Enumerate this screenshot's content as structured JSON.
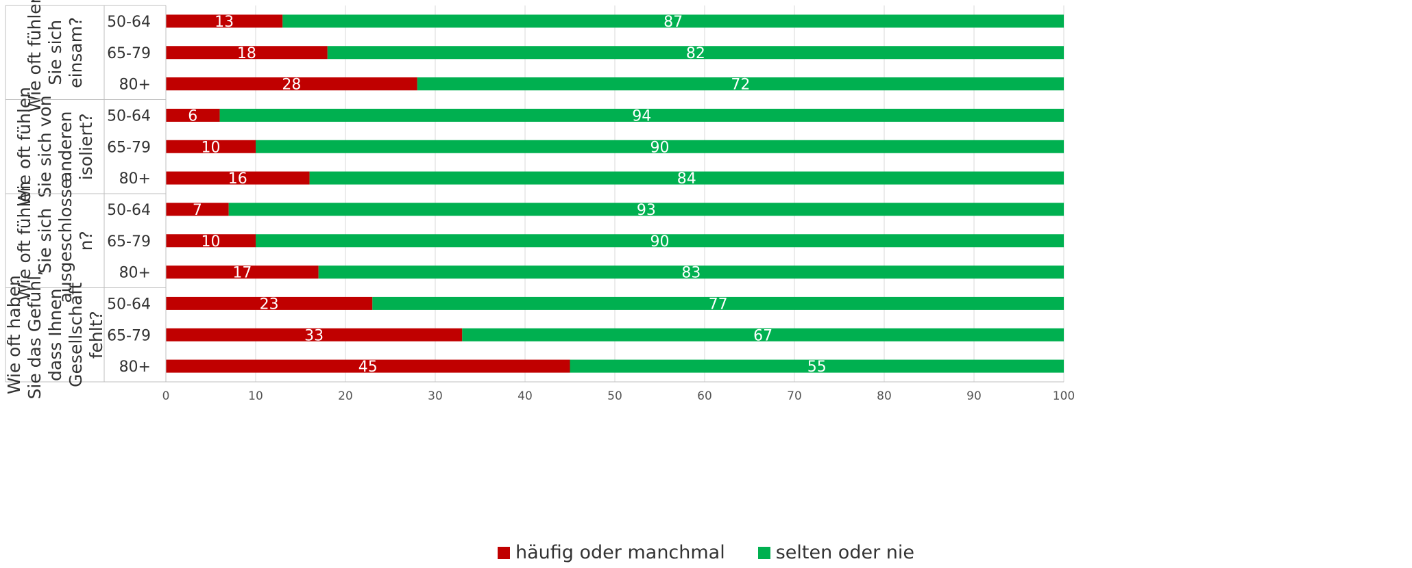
{
  "chart_data": {
    "type": "bar",
    "orientation": "horizontal",
    "stacked": true,
    "title": "",
    "xlabel": "",
    "ylabel": "",
    "xlim": [
      0,
      100
    ],
    "xticks": [
      "0",
      "10",
      "20",
      "30",
      "40",
      "50",
      "60",
      "70",
      "80",
      "90",
      "100"
    ],
    "grid": "vertical",
    "legend_position": "bottom",
    "groups": [
      {
        "label": "Wie oft fühlen Sie sich einsam?",
        "lines": [
          "Wie oft fühlen",
          "Sie sich",
          "einsam?"
        ],
        "categories": [
          "50-64",
          "65-79",
          "80+"
        ]
      },
      {
        "label": "Wie oft fühlen Sie sich von anderen isoliert?",
        "lines": [
          "Wie oft fühlen",
          "Sie sich von",
          "anderen",
          "isoliert?"
        ],
        "categories": [
          "50-64",
          "65-79",
          "80+"
        ]
      },
      {
        "label": "Wie oft fühlen Sie sich ausgeschlossen?",
        "lines": [
          "Wie oft fühlen",
          "Sie sich",
          "ausgeschlosse",
          "n?"
        ],
        "categories": [
          "50-64",
          "65-79",
          "80+"
        ]
      },
      {
        "label": "Wie oft haben Sie das Gefühl, dass Ihnen Gesellschaft fehlt?",
        "lines": [
          "Wie oft haben",
          "Sie das Gefühl,",
          "dass Ihnen",
          "Gesellschaft",
          "fehlt?"
        ],
        "categories": [
          "50-64",
          "65-79",
          "80+"
        ]
      }
    ],
    "series": [
      {
        "name": "häufig oder manchmal",
        "color": "#c00000",
        "values": [
          13,
          18,
          28,
          6,
          10,
          16,
          7,
          10,
          17,
          23,
          33,
          45
        ]
      },
      {
        "name": "selten oder nie",
        "color": "#00b050",
        "values": [
          87,
          82,
          72,
          94,
          90,
          84,
          93,
          90,
          83,
          77,
          67,
          55
        ]
      }
    ]
  }
}
